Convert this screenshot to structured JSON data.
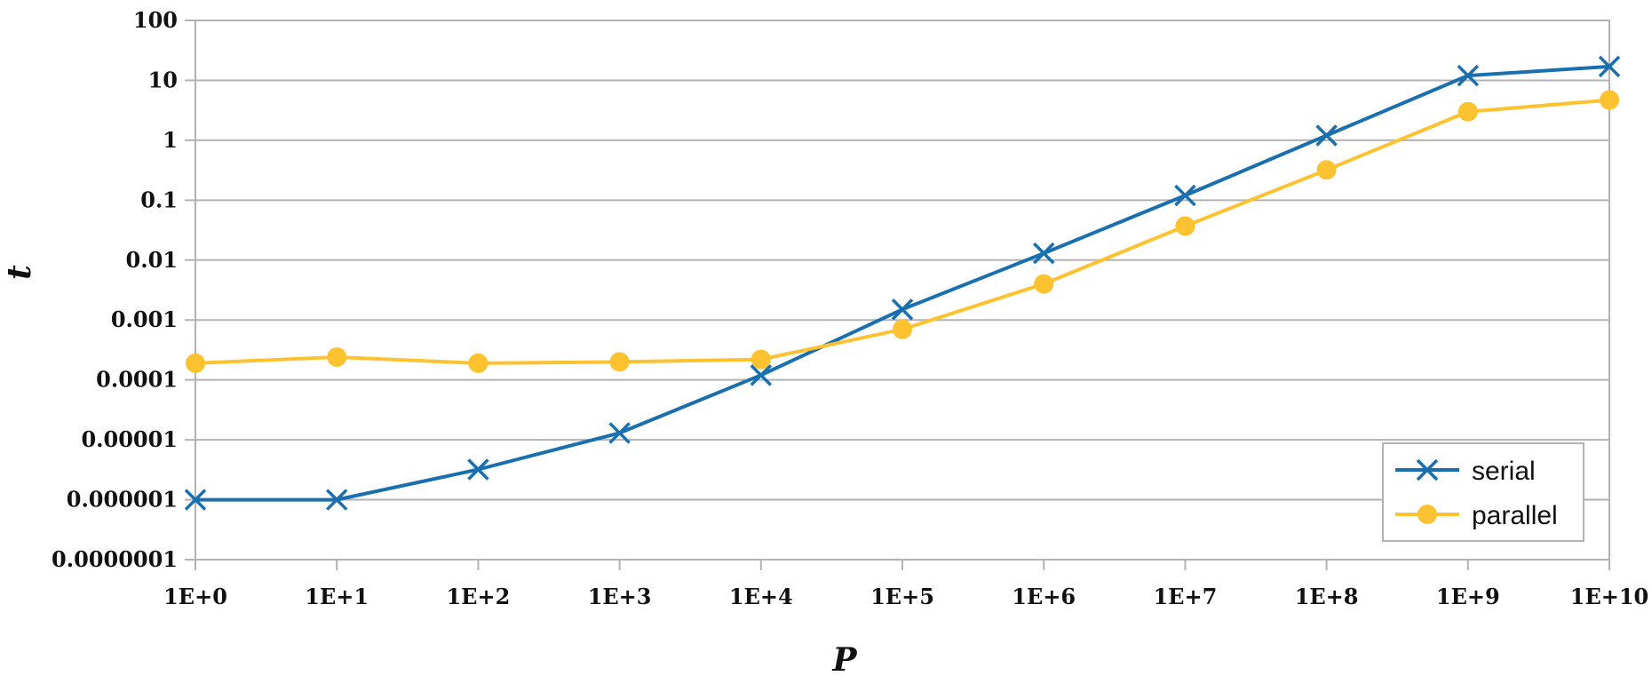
{
  "chart_data": {
    "type": "line",
    "xlabel": "P",
    "ylabel": "t",
    "x_scale": "log",
    "y_scale": "log",
    "x": [
      1,
      10,
      100,
      1000,
      10000,
      100000,
      1000000,
      10000000,
      100000000,
      1000000000,
      10000000000
    ],
    "x_tick_labels": [
      "1E+0",
      "1E+1",
      "1E+2",
      "1E+3",
      "1E+4",
      "1E+5",
      "1E+6",
      "1E+7",
      "1E+8",
      "1E+9",
      "1E+10"
    ],
    "y_ticks": [
      1e-07,
      1e-06,
      1e-05,
      0.0001,
      0.001,
      0.01,
      0.1,
      1,
      10,
      100
    ],
    "y_tick_labels": [
      "0.0000001",
      "0.000001",
      "0.00001",
      "0.0001",
      "0.001",
      "0.01",
      "0.1",
      "1",
      "10",
      "100"
    ],
    "xlim": [
      1,
      10000000000
    ],
    "ylim": [
      1e-07,
      100
    ],
    "grid": "horizontal",
    "legend_position": "bottom-right",
    "series": [
      {
        "name": "serial",
        "color": "#1a6faf",
        "marker": "x",
        "values": [
          1e-06,
          1e-06,
          3.2e-06,
          1.3e-05,
          0.00012,
          0.0015,
          0.013,
          0.12,
          1.2,
          12,
          17
        ]
      },
      {
        "name": "parallel",
        "color": "#fdc22f",
        "marker": "circle",
        "values": [
          0.00019,
          0.00024,
          0.00019,
          0.0002,
          0.00022,
          0.0007,
          0.004,
          0.037,
          0.32,
          3.0,
          4.7
        ]
      }
    ]
  }
}
